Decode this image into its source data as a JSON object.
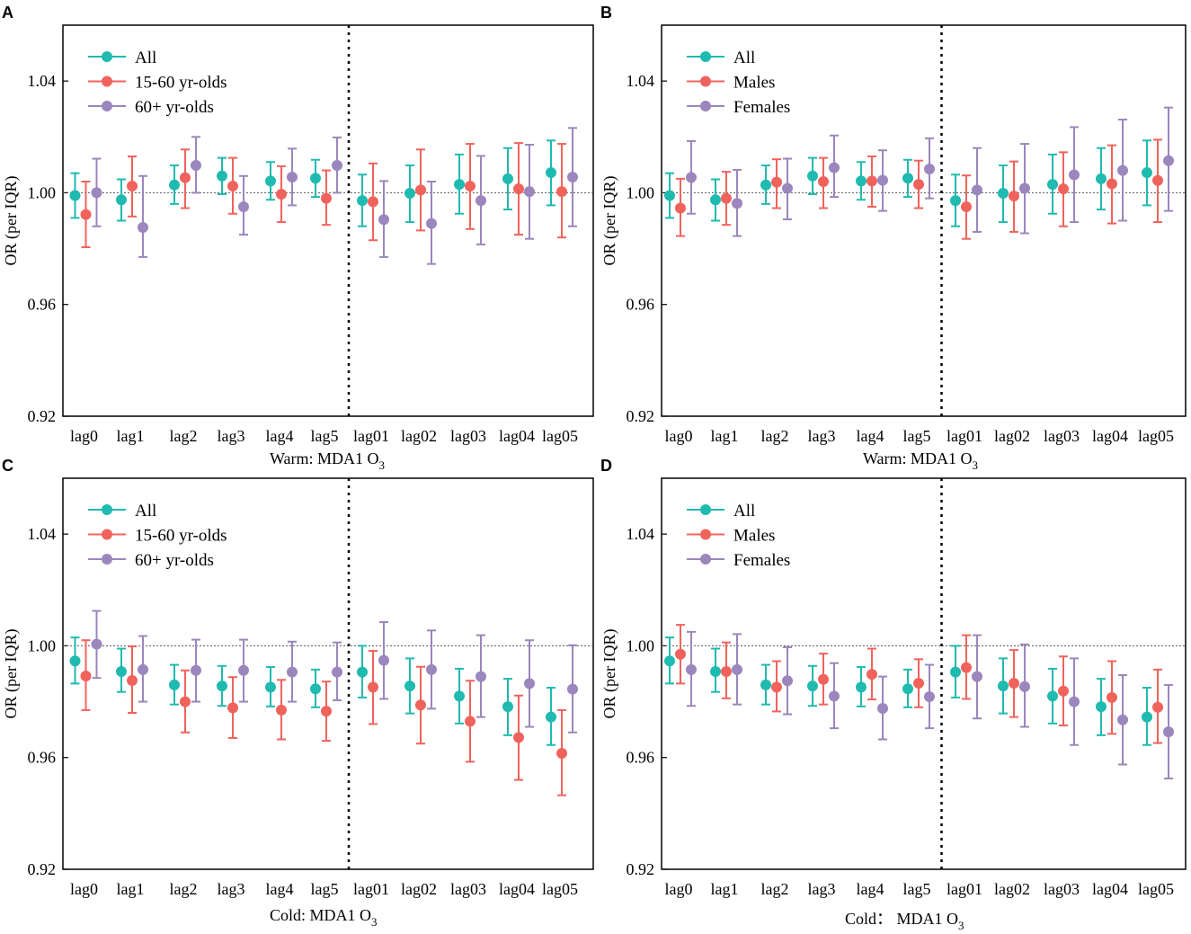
{
  "chart_data": [
    {
      "panel": "A",
      "type": "errorbar",
      "xlabel": "Warm: MDA1 O",
      "xlabel_sub": "3",
      "ylabel": "OR (per IQR)",
      "ylim": [
        0.92,
        1.06
      ],
      "yticks": [
        "0.92",
        "0.96",
        "1.00",
        "1.04"
      ],
      "reference_line": 1.0,
      "legend_position": "top-left",
      "categories": [
        "lag0",
        "lag1",
        "lag2",
        "lag3",
        "lag4",
        "lag5",
        "lag01",
        "lag02",
        "lag03",
        "lag04",
        "lag05"
      ],
      "series": [
        {
          "name": "All",
          "color": "#1fbab0",
          "values": [
            0.999,
            0.9975,
            1.0028,
            1.006,
            1.0042,
            1.0052,
            0.9972,
            0.9998,
            1.003,
            1.005,
            1.0072
          ],
          "lower": [
            0.991,
            0.99,
            0.996,
            0.9995,
            0.9975,
            0.9985,
            0.988,
            0.9895,
            0.9925,
            0.994,
            0.9955
          ],
          "upper": [
            1.007,
            1.0048,
            1.0098,
            1.0125,
            1.011,
            1.0118,
            1.0065,
            1.0098,
            1.0137,
            1.016,
            1.0187
          ]
        },
        {
          "name": "15-60 yr-olds",
          "color": "#f0635c",
          "values": [
            0.9922,
            1.0024,
            1.0054,
            1.0024,
            0.9995,
            0.998,
            0.9968,
            1.001,
            1.0024,
            1.0014,
            1.0004
          ],
          "lower": [
            0.9805,
            0.9915,
            0.9945,
            0.9925,
            0.9895,
            0.9885,
            0.983,
            0.9865,
            0.987,
            0.985,
            0.984
          ],
          "upper": [
            1.004,
            1.013,
            1.0155,
            1.0125,
            1.0095,
            1.008,
            1.0105,
            1.0155,
            1.0175,
            1.0178,
            1.0175
          ]
        },
        {
          "name": "60+ yr-olds",
          "color": "#9b86bd",
          "values": [
            1.0,
            0.9876,
            1.0098,
            0.995,
            1.0056,
            1.0098,
            0.9904,
            0.989,
            0.9972,
            1.0004,
            1.0056
          ],
          "lower": [
            0.988,
            0.977,
            1.0,
            0.985,
            0.9955,
            1.0,
            0.977,
            0.9745,
            0.9815,
            0.9835,
            0.988
          ],
          "upper": [
            1.0122,
            1.006,
            1.02,
            1.006,
            1.0158,
            1.0198,
            1.0042,
            1.004,
            1.0132,
            1.0172,
            1.0232
          ]
        }
      ]
    },
    {
      "panel": "B",
      "type": "errorbar",
      "xlabel": "Warm: MDA1 O",
      "xlabel_sub": "3",
      "ylabel": "OR (per IQR)",
      "ylim": [
        0.92,
        1.06
      ],
      "yticks": [
        "0.92",
        "0.96",
        "1.00",
        "1.04"
      ],
      "reference_line": 1.0,
      "legend_position": "top-left",
      "categories": [
        "lag0",
        "lag1",
        "lag2",
        "lag3",
        "lag4",
        "lag5",
        "lag01",
        "lag02",
        "lag03",
        "lag04",
        "lag05"
      ],
      "series": [
        {
          "name": "All",
          "color": "#1fbab0",
          "values": [
            0.999,
            0.9975,
            1.0028,
            1.006,
            1.0042,
            1.0052,
            0.9972,
            0.9998,
            1.003,
            1.005,
            1.0072
          ],
          "lower": [
            0.991,
            0.99,
            0.996,
            0.9995,
            0.9975,
            0.9985,
            0.988,
            0.9895,
            0.9925,
            0.994,
            0.9955
          ],
          "upper": [
            1.007,
            1.0048,
            1.0098,
            1.0125,
            1.011,
            1.0118,
            1.0065,
            1.0098,
            1.0137,
            1.016,
            1.0187
          ]
        },
        {
          "name": "Males",
          "color": "#f0635c",
          "values": [
            0.9945,
            0.998,
            1.0038,
            1.004,
            1.0042,
            1.003,
            0.995,
            0.9988,
            1.0014,
            1.0032,
            1.0044
          ],
          "lower": [
            0.9845,
            0.9885,
            0.9945,
            0.9945,
            0.995,
            0.9945,
            0.9835,
            0.986,
            0.988,
            0.989,
            0.9895
          ],
          "upper": [
            1.005,
            1.0075,
            1.012,
            1.0125,
            1.013,
            1.0115,
            1.0062,
            1.0112,
            1.0145,
            1.017,
            1.019
          ]
        },
        {
          "name": "Females",
          "color": "#9b86bd",
          "values": [
            1.0055,
            0.9962,
            1.0016,
            1.009,
            1.0045,
            1.0085,
            1.001,
            1.0016,
            1.0064,
            1.008,
            1.0115
          ],
          "lower": [
            0.9925,
            0.9845,
            0.9905,
            0.9985,
            0.9935,
            0.998,
            0.986,
            0.9855,
            0.9895,
            0.99,
            0.9935
          ],
          "upper": [
            1.0185,
            1.0082,
            1.0122,
            1.0205,
            1.0152,
            1.0195,
            1.016,
            1.0175,
            1.0235,
            1.0262,
            1.0305
          ]
        }
      ]
    },
    {
      "panel": "C",
      "type": "errorbar",
      "xlabel": "Cold: MDA1 O",
      "xlabel_sub": "3",
      "ylabel": "OR (per IQR)",
      "ylim": [
        0.92,
        1.06
      ],
      "yticks": [
        "0.92",
        "0.96",
        "1.00",
        "1.04"
      ],
      "reference_line": 1.0,
      "legend_position": "top-left",
      "categories": [
        "lag0",
        "lag1",
        "lag2",
        "lag3",
        "lag4",
        "lag5",
        "lag01",
        "lag02",
        "lag03",
        "lag04",
        "lag05"
      ],
      "series": [
        {
          "name": "All",
          "color": "#1fbab0",
          "values": [
            0.9946,
            0.9908,
            0.986,
            0.9856,
            0.9852,
            0.9846,
            0.9906,
            0.9856,
            0.982,
            0.9782,
            0.9745
          ],
          "lower": [
            0.9865,
            0.9835,
            0.979,
            0.9785,
            0.9783,
            0.978,
            0.9815,
            0.9758,
            0.9722,
            0.968,
            0.9645
          ],
          "upper": [
            1.003,
            0.999,
            0.9932,
            0.9928,
            0.9924,
            0.9915,
            1.0,
            0.9955,
            0.9918,
            0.9882,
            0.985
          ]
        },
        {
          "name": "15-60 yr-olds",
          "color": "#f0635c",
          "values": [
            0.9892,
            0.9876,
            0.98,
            0.9778,
            0.977,
            0.9766,
            0.9852,
            0.9788,
            0.973,
            0.9672,
            0.9615
          ],
          "lower": [
            0.977,
            0.976,
            0.969,
            0.967,
            0.9665,
            0.966,
            0.972,
            0.965,
            0.9585,
            0.952,
            0.9465
          ],
          "upper": [
            1.002,
            0.9998,
            0.9912,
            0.9888,
            0.9878,
            0.9872,
            0.9982,
            0.9925,
            0.9875,
            0.9822,
            0.977
          ]
        },
        {
          "name": "60+ yr-olds",
          "color": "#9b86bd",
          "values": [
            1.0006,
            0.9915,
            0.9912,
            0.9912,
            0.9906,
            0.9906,
            0.9948,
            0.9915,
            0.989,
            0.9865,
            0.9845
          ],
          "lower": [
            0.9885,
            0.98,
            0.98,
            0.98,
            0.98,
            0.9805,
            0.981,
            0.9775,
            0.9745,
            0.971,
            0.969
          ],
          "upper": [
            1.0125,
            1.0035,
            1.0022,
            1.0022,
            1.0015,
            1.0012,
            1.0085,
            1.0055,
            1.0038,
            1.002,
            1.0002
          ]
        }
      ]
    },
    {
      "panel": "D",
      "type": "errorbar",
      "xlabel": "Cold： MDA1 O",
      "xlabel_sub": "3",
      "ylabel": "OR (per IQR)",
      "ylim": [
        0.92,
        1.06
      ],
      "yticks": [
        "0.92",
        "0.96",
        "1.00",
        "1.04"
      ],
      "reference_line": 1.0,
      "legend_position": "top-left",
      "categories": [
        "lag0",
        "lag1",
        "lag2",
        "lag3",
        "lag4",
        "lag5",
        "lag01",
        "lag02",
        "lag03",
        "lag04",
        "lag05"
      ],
      "series": [
        {
          "name": "All",
          "color": "#1fbab0",
          "values": [
            0.9946,
            0.9908,
            0.986,
            0.9856,
            0.9852,
            0.9846,
            0.9906,
            0.9856,
            0.982,
            0.9782,
            0.9745
          ],
          "lower": [
            0.9865,
            0.9835,
            0.979,
            0.9785,
            0.9783,
            0.978,
            0.9815,
            0.9758,
            0.9722,
            0.968,
            0.9645
          ],
          "upper": [
            1.003,
            0.999,
            0.9932,
            0.9928,
            0.9924,
            0.9915,
            1.0,
            0.9955,
            0.9918,
            0.9882,
            0.985
          ]
        },
        {
          "name": "Males",
          "color": "#f0635c",
          "values": [
            0.997,
            0.9908,
            0.9852,
            0.988,
            0.9898,
            0.9866,
            0.9922,
            0.9866,
            0.9838,
            0.9815,
            0.978
          ],
          "lower": [
            0.9865,
            0.9812,
            0.9765,
            0.979,
            0.9808,
            0.978,
            0.981,
            0.9745,
            0.9715,
            0.9685,
            0.9652
          ],
          "upper": [
            1.0075,
            1.0012,
            0.9945,
            0.9972,
            0.999,
            0.9952,
            1.0038,
            0.9985,
            0.9962,
            0.9945,
            0.9915
          ]
        },
        {
          "name": "Females",
          "color": "#9b86bd",
          "values": [
            0.9915,
            0.9915,
            0.9875,
            0.982,
            0.9776,
            0.9818,
            0.989,
            0.9854,
            0.98,
            0.9735,
            0.9692
          ],
          "lower": [
            0.9785,
            0.979,
            0.9755,
            0.9705,
            0.9665,
            0.9705,
            0.974,
            0.971,
            0.9645,
            0.9575,
            0.9525
          ],
          "upper": [
            1.005,
            1.0042,
            0.9995,
            0.9938,
            0.989,
            0.9932,
            1.0038,
            1.0005,
            0.9955,
            0.9895,
            0.986
          ]
        }
      ]
    }
  ]
}
